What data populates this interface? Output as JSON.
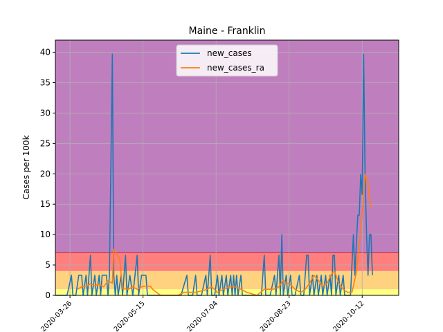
{
  "chart_data": {
    "type": "line",
    "title": "Maine - Franklin",
    "xlabel": "",
    "ylabel": "Cases per 100k",
    "x_start": "2020-03-16",
    "x_end": "2020-11-06",
    "ylim": [
      0,
      42
    ],
    "yticks": [
      0,
      5,
      10,
      15,
      20,
      25,
      30,
      35,
      40
    ],
    "xticks": [
      "2020-03-26",
      "2020-05-15",
      "2020-07-04",
      "2020-08-23",
      "2020-10-12"
    ],
    "grid": true,
    "legend_position": "top-center",
    "bands": [
      {
        "from": 0,
        "to": 1,
        "color": "#ffff80"
      },
      {
        "from": 1,
        "to": 4,
        "color": "#ffd27f"
      },
      {
        "from": 4,
        "to": 7,
        "color": "#ff7f7f"
      },
      {
        "from": 7,
        "to": 42,
        "color": "#bf7fbf"
      }
    ],
    "series": [
      {
        "name": "new_cases",
        "color": "#1f77b4",
        "points": [
          [
            "2020-03-16",
            0
          ],
          [
            "2020-03-18",
            0
          ],
          [
            "2020-03-20",
            0
          ],
          [
            "2020-03-22",
            0
          ],
          [
            "2020-03-24",
            0
          ],
          [
            "2020-03-27",
            3.3
          ],
          [
            "2020-03-28",
            0
          ],
          [
            "2020-03-30",
            0
          ],
          [
            "2020-04-01",
            3.3
          ],
          [
            "2020-04-03",
            3.3
          ],
          [
            "2020-04-04",
            0
          ],
          [
            "2020-04-06",
            3.3
          ],
          [
            "2020-04-07",
            0
          ],
          [
            "2020-04-09",
            6.6
          ],
          [
            "2020-04-10",
            0
          ],
          [
            "2020-04-12",
            3.3
          ],
          [
            "2020-04-13",
            0
          ],
          [
            "2020-04-15",
            3.3
          ],
          [
            "2020-04-16",
            0
          ],
          [
            "2020-04-17",
            3.3
          ],
          [
            "2020-04-20",
            3.3
          ],
          [
            "2020-04-21",
            0
          ],
          [
            "2020-04-22",
            3.3
          ],
          [
            "2020-04-24",
            39.7
          ],
          [
            "2020-04-25",
            3.3
          ],
          [
            "2020-04-26",
            0
          ],
          [
            "2020-04-27",
            3.3
          ],
          [
            "2020-04-28",
            0
          ],
          [
            "2020-04-30",
            3.3
          ],
          [
            "2020-05-01",
            0
          ],
          [
            "2020-05-03",
            6.6
          ],
          [
            "2020-05-04",
            0
          ],
          [
            "2020-05-06",
            3.3
          ],
          [
            "2020-05-08",
            0
          ],
          [
            "2020-05-11",
            6.6
          ],
          [
            "2020-05-12",
            0
          ],
          [
            "2020-05-14",
            3.3
          ],
          [
            "2020-05-17",
            3.3
          ],
          [
            "2020-05-18",
            0
          ],
          [
            "2020-05-20",
            0
          ],
          [
            "2020-05-22",
            0
          ],
          [
            "2020-05-24",
            0
          ],
          [
            "2020-05-27",
            0
          ],
          [
            "2020-05-30",
            0
          ],
          [
            "2020-06-03",
            0
          ],
          [
            "2020-06-07",
            0
          ],
          [
            "2020-06-10",
            0
          ],
          [
            "2020-06-14",
            3.3
          ],
          [
            "2020-06-15",
            0
          ],
          [
            "2020-06-18",
            0
          ],
          [
            "2020-06-20",
            3.3
          ],
          [
            "2020-06-21",
            0
          ],
          [
            "2020-06-24",
            0
          ],
          [
            "2020-06-27",
            3.3
          ],
          [
            "2020-06-28",
            0
          ],
          [
            "2020-06-30",
            6.6
          ],
          [
            "2020-07-01",
            0
          ],
          [
            "2020-07-03",
            0
          ],
          [
            "2020-07-05",
            3.3
          ],
          [
            "2020-07-06",
            0
          ],
          [
            "2020-07-08",
            3.3
          ],
          [
            "2020-07-09",
            0
          ],
          [
            "2020-07-11",
            3.3
          ],
          [
            "2020-07-12",
            0
          ],
          [
            "2020-07-14",
            3.3
          ],
          [
            "2020-07-15",
            0
          ],
          [
            "2020-07-16",
            3.3
          ],
          [
            "2020-07-17",
            0
          ],
          [
            "2020-07-18",
            3.3
          ],
          [
            "2020-07-19",
            0
          ],
          [
            "2020-07-21",
            3.3
          ],
          [
            "2020-07-22",
            0
          ],
          [
            "2020-07-26",
            0
          ],
          [
            "2020-07-30",
            0
          ],
          [
            "2020-08-04",
            0
          ],
          [
            "2020-08-06",
            6.6
          ],
          [
            "2020-08-07",
            0
          ],
          [
            "2020-08-10",
            0
          ],
          [
            "2020-08-13",
            3.3
          ],
          [
            "2020-08-14",
            0
          ],
          [
            "2020-08-16",
            6.6
          ],
          [
            "2020-08-17",
            0
          ],
          [
            "2020-08-18",
            10
          ],
          [
            "2020-08-19",
            0
          ],
          [
            "2020-08-21",
            3.3
          ],
          [
            "2020-08-22",
            0
          ],
          [
            "2020-08-24",
            3.3
          ],
          [
            "2020-08-25",
            0
          ],
          [
            "2020-08-27",
            0
          ],
          [
            "2020-08-30",
            3.3
          ],
          [
            "2020-08-31",
            0
          ],
          [
            "2020-09-02",
            0
          ],
          [
            "2020-09-04",
            6.6
          ],
          [
            "2020-09-05",
            6.6
          ],
          [
            "2020-09-06",
            0
          ],
          [
            "2020-09-08",
            3.3
          ],
          [
            "2020-09-09",
            0
          ],
          [
            "2020-09-11",
            3.3
          ],
          [
            "2020-09-12",
            0
          ],
          [
            "2020-09-14",
            3.3
          ],
          [
            "2020-09-15",
            0
          ],
          [
            "2020-09-17",
            3.3
          ],
          [
            "2020-09-18",
            0
          ],
          [
            "2020-09-20",
            3.3
          ],
          [
            "2020-09-21",
            0
          ],
          [
            "2020-09-22",
            6.6
          ],
          [
            "2020-09-23",
            6.6
          ],
          [
            "2020-09-24",
            0
          ],
          [
            "2020-09-26",
            3.3
          ],
          [
            "2020-09-27",
            0
          ],
          [
            "2020-09-29",
            3.3
          ],
          [
            "2020-09-30",
            0
          ],
          [
            "2020-10-02",
            0
          ],
          [
            "2020-10-04",
            0
          ],
          [
            "2020-10-06",
            10
          ],
          [
            "2020-10-07",
            3.3
          ],
          [
            "2020-10-09",
            13.2
          ],
          [
            "2020-10-10",
            13.2
          ],
          [
            "2020-10-11",
            19.9
          ],
          [
            "2020-10-12",
            16.6
          ],
          [
            "2020-10-13",
            39.7
          ],
          [
            "2020-10-14",
            19.9
          ],
          [
            "2020-10-15",
            10
          ],
          [
            "2020-10-16",
            3.3
          ],
          [
            "2020-10-17",
            10
          ],
          [
            "2020-10-18",
            10
          ],
          [
            "2020-10-19",
            3.3
          ]
        ]
      },
      {
        "name": "new_cases_ra",
        "color": "#ff7f0e",
        "points": [
          [
            "2020-03-31",
            1.0
          ],
          [
            "2020-04-03",
            1.4
          ],
          [
            "2020-04-06",
            1.5
          ],
          [
            "2020-04-09",
            1.9
          ],
          [
            "2020-04-12",
            1.6
          ],
          [
            "2020-04-15",
            1.8
          ],
          [
            "2020-04-18",
            1.4
          ],
          [
            "2020-04-21",
            2.4
          ],
          [
            "2020-04-24",
            2.0
          ],
          [
            "2020-04-25",
            7.6
          ],
          [
            "2020-04-27",
            6.8
          ],
          [
            "2020-04-29",
            6.0
          ],
          [
            "2020-05-01",
            1.1
          ],
          [
            "2020-05-05",
            1.0
          ],
          [
            "2020-05-08",
            1.4
          ],
          [
            "2020-05-11",
            1.0
          ],
          [
            "2020-05-15",
            1.5
          ],
          [
            "2020-05-20",
            1.5
          ],
          [
            "2020-05-22",
            0.9
          ],
          [
            "2020-05-27",
            0
          ],
          [
            "2020-06-02",
            0
          ],
          [
            "2020-06-08",
            0
          ],
          [
            "2020-06-12",
            0.5
          ],
          [
            "2020-06-20",
            0.5
          ],
          [
            "2020-06-27",
            0.9
          ],
          [
            "2020-07-01",
            1.4
          ],
          [
            "2020-07-05",
            0.5
          ],
          [
            "2020-07-09",
            1.0
          ],
          [
            "2020-07-13",
            1.4
          ],
          [
            "2020-07-17",
            1.4
          ],
          [
            "2020-07-21",
            1.0
          ],
          [
            "2020-07-25",
            0.5
          ],
          [
            "2020-08-01",
            0
          ],
          [
            "2020-08-06",
            1.0
          ],
          [
            "2020-08-12",
            1.0
          ],
          [
            "2020-08-16",
            1.4
          ],
          [
            "2020-08-19",
            2.5
          ],
          [
            "2020-08-21",
            2.0
          ],
          [
            "2020-08-23",
            2.0
          ],
          [
            "2020-08-27",
            1.0
          ],
          [
            "2020-08-31",
            0.5
          ],
          [
            "2020-09-03",
            1.0
          ],
          [
            "2020-09-06",
            2.0
          ],
          [
            "2020-09-09",
            3.3
          ],
          [
            "2020-09-12",
            2.5
          ],
          [
            "2020-09-15",
            1.5
          ],
          [
            "2020-09-18",
            2.0
          ],
          [
            "2020-09-21",
            3.5
          ],
          [
            "2020-09-23",
            4.0
          ],
          [
            "2020-09-26",
            2.0
          ],
          [
            "2020-09-29",
            1.0
          ],
          [
            "2020-10-02",
            0.5
          ],
          [
            "2020-10-05",
            0.5
          ],
          [
            "2020-10-06",
            1.5
          ],
          [
            "2020-10-08",
            3.8
          ],
          [
            "2020-10-10",
            8.0
          ],
          [
            "2020-10-12",
            13.5
          ],
          [
            "2020-10-14",
            19.9
          ],
          [
            "2020-10-16",
            18.5
          ],
          [
            "2020-10-17",
            16.0
          ],
          [
            "2020-10-18",
            14.5
          ]
        ]
      }
    ]
  }
}
